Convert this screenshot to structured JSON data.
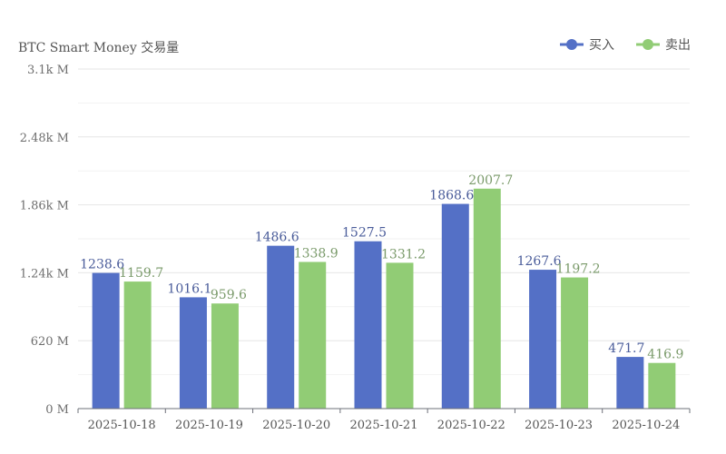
{
  "chart_data": {
    "type": "bar",
    "title": "BTC Smart Money 交易量",
    "categories": [
      "2025-10-18",
      "2025-10-19",
      "2025-10-20",
      "2025-10-21",
      "2025-10-22",
      "2025-10-23",
      "2025-10-24"
    ],
    "series": [
      {
        "name": "买入",
        "color": "#5470c6",
        "values": [
          1238.6,
          1016.1,
          1486.6,
          1527.5,
          1868.6,
          1267.6,
          471.7
        ]
      },
      {
        "name": "卖出",
        "color": "#91cc75",
        "values": [
          1159.7,
          959.6,
          1338.9,
          1331.2,
          2007.7,
          1197.2,
          416.9
        ]
      }
    ],
    "y_ticks": [
      {
        "value": 0,
        "label": "0 M"
      },
      {
        "value": 620,
        "label": "620 M"
      },
      {
        "value": 1240,
        "label": "1.24k M"
      },
      {
        "value": 1860,
        "label": "1.86k M"
      },
      {
        "value": 2480,
        "label": "2.48k M"
      },
      {
        "value": 3100,
        "label": "3.1k M"
      }
    ],
    "ylim": [
      0,
      3100
    ],
    "grid": true,
    "legend_position": "top-right",
    "xlabel": "",
    "ylabel": ""
  }
}
